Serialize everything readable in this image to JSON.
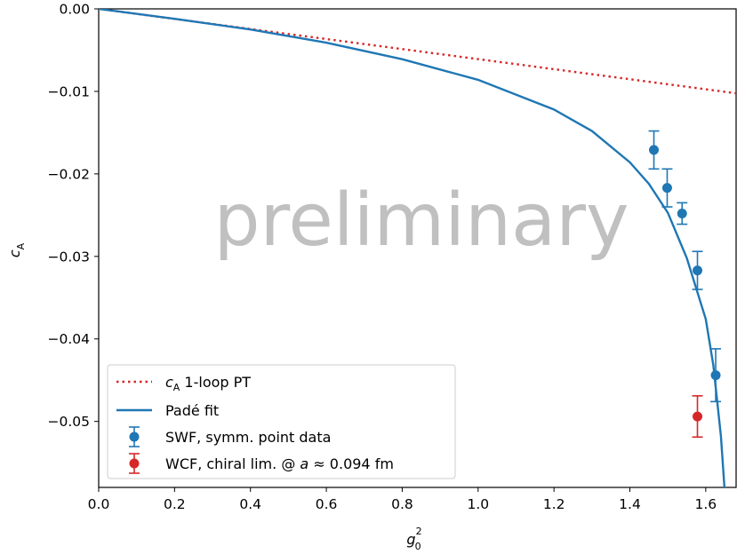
{
  "chart_data": {
    "type": "line",
    "title": "",
    "xlabel_base": "g",
    "xlabel_sub": "0",
    "xlabel_sup": "2",
    "ylabel_base": "c",
    "ylabel_sub": "A",
    "xlim": [
      0.0,
      1.68
    ],
    "ylim": [
      -0.058,
      0.0
    ],
    "xticks": [
      0.0,
      0.2,
      0.4,
      0.6,
      0.8,
      1.0,
      1.2,
      1.4,
      1.6
    ],
    "xtick_labels": [
      "0.0",
      "0.2",
      "0.4",
      "0.6",
      "0.8",
      "1.0",
      "1.2",
      "1.4",
      "1.6"
    ],
    "yticks": [
      0.0,
      -0.01,
      -0.02,
      -0.03,
      -0.04,
      -0.05
    ],
    "ytick_labels": [
      "0.00",
      "−0.01",
      "−0.02",
      "−0.03",
      "−0.04",
      "−0.05"
    ],
    "grid": false,
    "legend_position": "bottom-left",
    "watermark": "preliminary",
    "series": [
      {
        "name": "c_A 1-loop PT",
        "kind": "dotted-line",
        "color": "#d62728",
        "slope": -0.00609,
        "legend_label": {
          "pre": "",
          "italic": "c",
          "sub": "A",
          "post": " 1-loop PT"
        }
      },
      {
        "name": "Padé fit",
        "kind": "line",
        "color": "#1f77b4",
        "x": [
          0.0,
          0.2,
          0.4,
          0.6,
          0.8,
          1.0,
          1.2,
          1.3,
          1.4,
          1.45,
          1.5,
          1.55,
          1.6,
          1.62,
          1.64,
          1.65
        ],
        "y": [
          0.0,
          -0.0012,
          -0.0025,
          -0.0041,
          -0.0061,
          -0.0086,
          -0.0122,
          -0.0148,
          -0.0186,
          -0.0212,
          -0.0247,
          -0.0302,
          -0.0376,
          -0.0432,
          -0.0518,
          -0.0585
        ],
        "legend_label": {
          "pre": "Padé fit",
          "italic": "",
          "sub": "",
          "post": ""
        }
      },
      {
        "name": "SWF, symm. point data",
        "kind": "errorbar",
        "color": "#1f77b4",
        "points": [
          {
            "x": 1.4633,
            "y": -0.0171,
            "err": 0.0023
          },
          {
            "x": 1.4983,
            "y": -0.0217,
            "err": 0.0023
          },
          {
            "x": 1.5376,
            "y": -0.0248,
            "err": 0.0013
          },
          {
            "x": 1.5781,
            "y": -0.0317,
            "err": 0.0023
          },
          {
            "x": 1.6262,
            "y": -0.0444,
            "err": 0.0032
          }
        ],
        "legend_label": {
          "pre": "SWF, symm. point data",
          "italic": "",
          "sub": "",
          "post": ""
        }
      },
      {
        "name": "WCF, chiral lim. @ a ≈ 0.094 fm",
        "kind": "errorbar",
        "color": "#d62728",
        "points": [
          {
            "x": 1.5781,
            "y": -0.0494,
            "err": 0.0025
          }
        ],
        "legend_label": {
          "pre": "WCF, chiral lim. @ ",
          "italic": "a",
          "sub": "",
          "post": " ≈ 0.094 fm"
        }
      }
    ]
  }
}
